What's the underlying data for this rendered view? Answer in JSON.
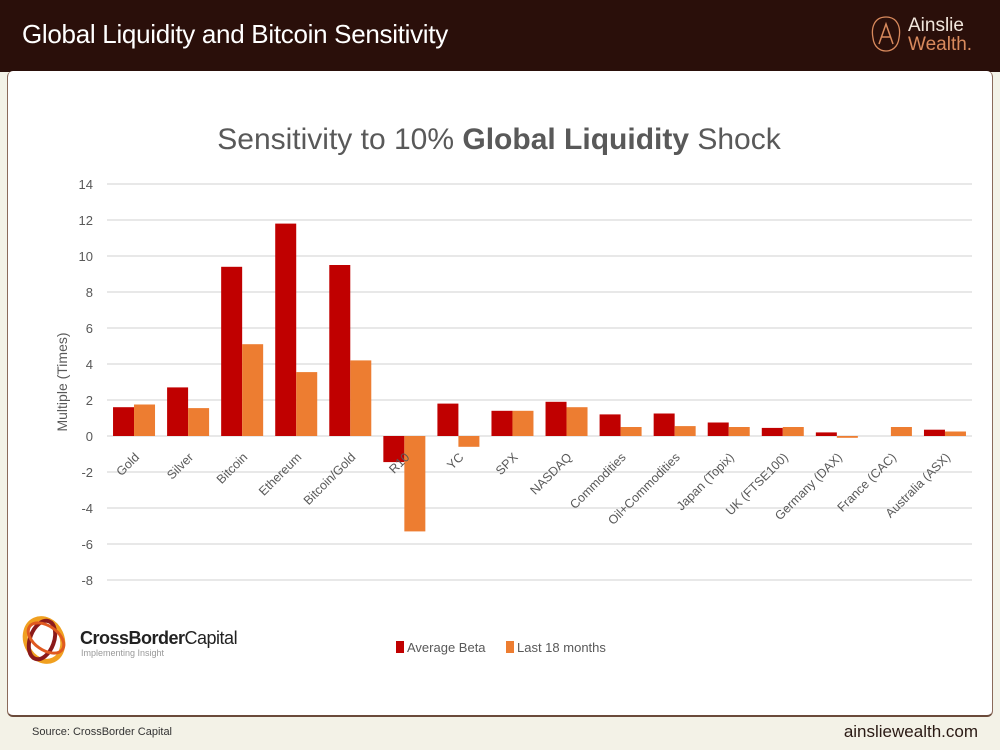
{
  "header": {
    "title": "Global Liquidity and Bitcoin Sensitivity",
    "brand_line1": "Ainslie",
    "brand_line2": "Wealth."
  },
  "logo": {
    "name_bold": "CrossBorder",
    "name_regular": "Capital",
    "tagline": "Implementing Insight"
  },
  "footer": {
    "source": "Source: CrossBorder Capital",
    "site": "ainsliewealth.com"
  },
  "colors": {
    "average_beta": "#c00000",
    "last_18_months": "#ed7d31",
    "header_bg": "#2a0f0a"
  },
  "chart_data": {
    "type": "bar",
    "title_prefix": "Sensitivity to 10% ",
    "title_bold": "Global Liquidity",
    "title_suffix": " Shock",
    "ylabel": "Multiple (Times)",
    "xlabel": "",
    "ylim": [
      -8,
      14
    ],
    "yticks": [
      14,
      12,
      10,
      8,
      6,
      4,
      2,
      0,
      -2,
      -4,
      -6,
      -8
    ],
    "grid": true,
    "legend_position": "bottom",
    "categories": [
      "Gold",
      "Silver",
      "Bitcoin",
      "Ethereum",
      "Bitcoin/Gold",
      "R10",
      "YC",
      "SPX",
      "NASDAQ",
      "Commodities",
      "Oil+Commodities",
      "Japan (Topix)",
      "UK (FTSE100)",
      "Germany (DAX)",
      "France (CAC)",
      "Australia (ASX)"
    ],
    "series": [
      {
        "name": "Average Beta",
        "color": "#c00000",
        "values": [
          1.6,
          2.7,
          9.4,
          11.8,
          9.5,
          -1.45,
          1.8,
          1.4,
          1.9,
          1.2,
          1.25,
          0.75,
          0.45,
          0.2,
          0,
          0.35
        ]
      },
      {
        "name": "Last 18 months",
        "color": "#ed7d31",
        "values": [
          1.75,
          1.55,
          5.1,
          3.55,
          4.2,
          -5.3,
          -0.6,
          1.4,
          1.6,
          0.5,
          0.55,
          0.5,
          0.5,
          -0.1,
          0.5,
          0.25
        ]
      }
    ]
  }
}
